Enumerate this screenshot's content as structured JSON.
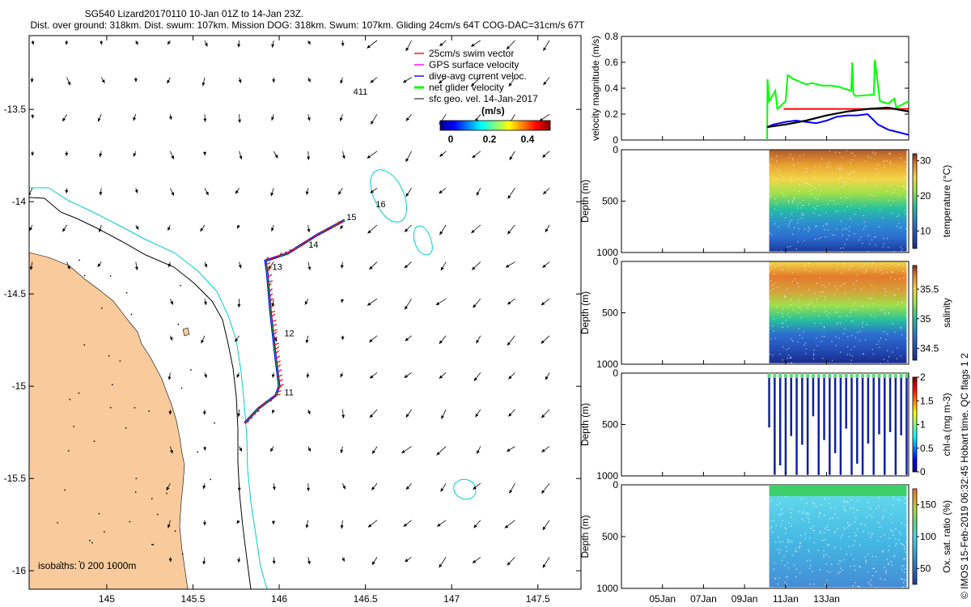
{
  "title": {
    "line1": "SG540 Lizard20170110 10-Jan 01Z to 14-Jan 23Z.",
    "line2": "Dist. over ground: 318km. Dist. swum: 107km. Mission DOG: 318km. Swum: 107km. Gliding 24cm/s 64T COG-DAC=31cm/s 67T"
  },
  "credit": "© IMOS 15-Feb-2019 06:32:45 Hobart time. QC flags 1  2",
  "chart_data": [
    {
      "type": "map",
      "name": "glider track map",
      "x_ticks": [
        "145",
        "145.5",
        "146",
        "146.5",
        "147",
        "147.5"
      ],
      "y_ticks": [
        "-13.5",
        "-14",
        "-14.5",
        "-15",
        "-15.5",
        "-16"
      ],
      "xlim": [
        144.55,
        147.75
      ],
      "ylim": [
        -16.1,
        -13.1
      ],
      "legend": [
        {
          "label": "25cm/s swim vector",
          "color": "#ff0000"
        },
        {
          "label": "GPS surface velocity",
          "color": "#ff00ff"
        },
        {
          "label": "dive-avg current veloc.",
          "color": "#0000ff"
        },
        {
          "label": "net glider velocity",
          "color": "#00ff00"
        },
        {
          "label": "sfc geo. vel. 14-Jan-2017",
          "color": "#000000"
        }
      ],
      "colorbar": {
        "label": "(m/s)",
        "ticks": [
          "0",
          "0.2",
          "0.4"
        ],
        "range": [
          0,
          0.5
        ]
      },
      "track_labels": [
        {
          "label": "11",
          "lon": 146.03,
          "lat": -15.05
        },
        {
          "label": "12",
          "lon": 146.03,
          "lat": -14.73
        },
        {
          "label": "13",
          "lon": 145.96,
          "lat": -14.37
        },
        {
          "label": "14",
          "lon": 146.17,
          "lat": -14.25
        },
        {
          "label": "15",
          "lon": 146.39,
          "lat": -14.1
        },
        {
          "label": "16",
          "lon": 146.56,
          "lat": -14.03
        },
        {
          "label": "411",
          "lon": 146.43,
          "lat": -13.42
        }
      ],
      "track": [
        {
          "lon": 145.8,
          "lat": -15.2
        },
        {
          "lon": 145.88,
          "lat": -15.12
        },
        {
          "lon": 145.98,
          "lat": -15.05
        },
        {
          "lon": 146.0,
          "lat": -15.0
        },
        {
          "lon": 145.98,
          "lat": -14.85
        },
        {
          "lon": 145.95,
          "lat": -14.6
        },
        {
          "lon": 145.93,
          "lat": -14.38
        },
        {
          "lon": 145.92,
          "lat": -14.32
        },
        {
          "lon": 146.05,
          "lat": -14.28
        },
        {
          "lon": 146.22,
          "lat": -14.18
        },
        {
          "lon": 146.38,
          "lat": -14.1
        }
      ],
      "isobaths_label": "isobaths: 0   200  1000m"
    },
    {
      "type": "line",
      "name": "velocity magnitude",
      "ylabel": "velocity magnitude (m/s)",
      "y_ticks": [
        "0",
        "0.2",
        "0.4",
        "0.6",
        "0.8"
      ],
      "ylim": [
        0,
        0.8
      ],
      "xlim": [
        0,
        17
      ],
      "series": [
        {
          "name": "net glider velocity",
          "color": "#00ff00",
          "x": [
            10.1,
            10.12,
            10.2,
            10.5,
            10.6,
            11.0,
            11.1,
            11.4,
            11.7,
            12.0,
            12.3,
            12.8,
            13.2,
            13.6,
            14.2,
            14.25,
            14.3,
            14.4,
            15.3,
            15.35,
            15.6,
            16.0,
            16.3,
            16.4,
            17.0
          ],
          "y": [
            0.0,
            0.47,
            0.3,
            0.38,
            0.24,
            0.3,
            0.5,
            0.47,
            0.45,
            0.43,
            0.44,
            0.42,
            0.42,
            0.41,
            0.38,
            0.6,
            0.36,
            0.34,
            0.35,
            0.62,
            0.3,
            0.28,
            0.32,
            0.25,
            0.3
          ]
        },
        {
          "name": "swim vector",
          "color": "#ff0000",
          "x": [
            10.9,
            17.0
          ],
          "y": [
            0.24,
            0.24
          ]
        },
        {
          "name": "dive-avg current",
          "color": "#0000ff",
          "x": [
            10.1,
            10.4,
            11.0,
            11.5,
            12.0,
            12.5,
            13.0,
            13.5,
            14.0,
            14.5,
            15.0,
            15.5,
            16.0,
            16.5,
            17.0
          ],
          "y": [
            0.1,
            0.12,
            0.14,
            0.15,
            0.14,
            0.13,
            0.15,
            0.18,
            0.19,
            0.19,
            0.2,
            0.12,
            0.08,
            0.06,
            0.04
          ]
        },
        {
          "name": "net speed",
          "color": "#000000",
          "x": [
            10.1,
            11.0,
            12.0,
            13.0,
            14.0,
            15.0,
            16.0,
            17.0
          ],
          "y": [
            0.1,
            0.12,
            0.15,
            0.19,
            0.22,
            0.24,
            0.25,
            0.22
          ]
        }
      ]
    },
    {
      "type": "scatter",
      "name": "temperature section",
      "ylabel": "Depth (m)",
      "ylim": [
        1000,
        0
      ],
      "y_ticks": [
        "0",
        "500",
        "1000"
      ],
      "colorbar_label": "temperature (°C)",
      "colorbar_ticks": [
        "10",
        "20",
        "30"
      ],
      "crange": [
        5,
        32
      ]
    },
    {
      "type": "scatter",
      "name": "salinity section",
      "ylabel": "Depth (m)",
      "ylim": [
        1000,
        0
      ],
      "y_ticks": [
        "0",
        "500",
        "1000"
      ],
      "colorbar_label": "salinity",
      "colorbar_ticks": [
        "34.5",
        "35",
        "35.5"
      ],
      "crange": [
        34.3,
        35.9
      ]
    },
    {
      "type": "scatter",
      "name": "chlorophyll section",
      "ylabel": "Depth (m)",
      "ylim": [
        1000,
        0
      ],
      "y_ticks": [
        "0",
        "500",
        "1000"
      ],
      "colorbar_label": "chl-a (mg m-3)",
      "colorbar_ticks": [
        "0",
        "0.5",
        "1",
        "1.5",
        "2"
      ],
      "crange": [
        0,
        2
      ]
    },
    {
      "type": "scatter",
      "name": "oxygen section",
      "ylabel": "Depth (m)",
      "ylim": [
        1000,
        0
      ],
      "y_ticks": [
        "0",
        "500",
        "1000"
      ],
      "colorbar_label": "Ox. sat. ratio (%)",
      "colorbar_ticks": [
        "50",
        "100",
        "150"
      ],
      "crange": [
        25,
        175
      ]
    }
  ],
  "time_axis": {
    "ticks": [
      "05Jan",
      "07Jan",
      "09Jan",
      "11Jan",
      "13Jan"
    ],
    "tick_days": [
      5,
      7,
      9,
      11,
      13
    ],
    "xlim": [
      3,
      17
    ]
  }
}
